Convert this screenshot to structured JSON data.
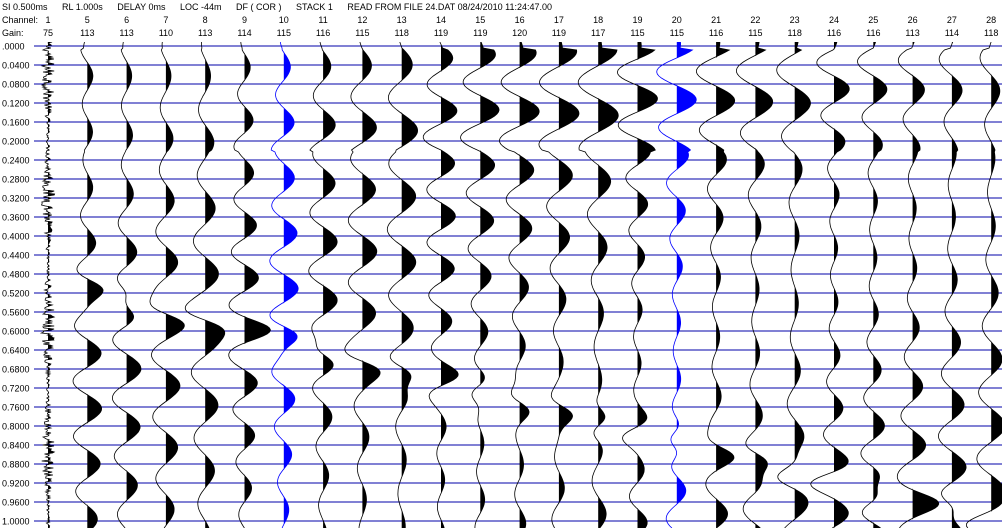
{
  "header": {
    "sample_interval": "SI 0.500ms",
    "record_length": "RL 1.000s",
    "delay": "DELAY 0ms",
    "location": "LOC -44m",
    "display_filter": "DF ( COR )",
    "stack": "STACK 1",
    "source": "READ FROM FILE 24.DAT 08/24/2010 11:24:47.00",
    "channel_label": "Channel:",
    "gain_label": "Gain:"
  },
  "channels": [
    "1",
    "5",
    "6",
    "7",
    "8",
    "9",
    "10",
    "11",
    "12",
    "13",
    "14",
    "15",
    "16",
    "17",
    "18",
    "19",
    "20",
    "21",
    "22",
    "23",
    "24",
    "25",
    "26",
    "27",
    "28"
  ],
  "gains": [
    "75",
    "113",
    "113",
    "110",
    "113",
    "114",
    "115",
    "116",
    "115",
    "118",
    "119",
    "119",
    "120",
    "119",
    "117",
    "115",
    "115",
    "116",
    "115",
    "118",
    "116",
    "116",
    "113",
    "114",
    "118"
  ],
  "highlighted_channels": [
    "10",
    "20"
  ],
  "time_axis": {
    "unit": "s",
    "labels": [
      ".0000",
      "0.0400",
      "0.0800",
      "0.1200",
      "0.1600",
      "0.2000",
      "0.2400",
      "0.2800",
      "0.3200",
      "0.3600",
      "0.4000",
      "0.4400",
      "0.4800",
      "0.5200",
      "0.5600",
      "0.6000",
      "0.6400",
      "0.6800",
      "0.7200",
      "0.7600",
      "0.8000",
      "0.8400",
      "0.8800",
      "0.9200",
      "0.9600",
      "1.0000"
    ]
  },
  "colors": {
    "trace": "#000000",
    "highlight_trace": "#0000ff",
    "timing_line": "#0000aa",
    "background": "#ffffff"
  }
}
